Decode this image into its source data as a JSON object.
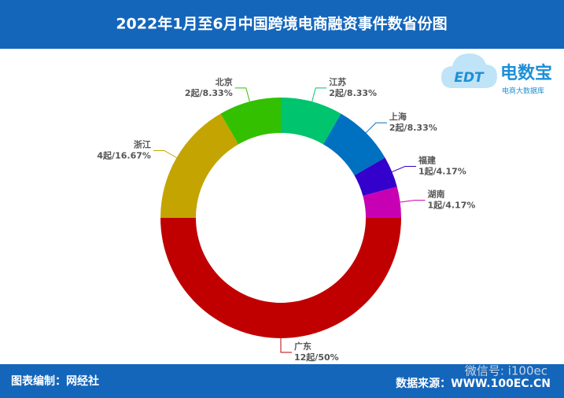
{
  "chart_data": {
    "type": "pie",
    "donut": true,
    "title": "2022年1月至6月中国跨境电商融资事件数省份图",
    "categories": [
      "江苏",
      "上海",
      "福建",
      "湖南",
      "广东",
      "浙江",
      "北京"
    ],
    "values": [
      2,
      2,
      1,
      1,
      12,
      4,
      2
    ],
    "value_labels": [
      "2起/8.33%",
      "2起/8.33%",
      "1起/4.17%",
      "1起/4.17%",
      "12起/50%",
      "4起/16.67%",
      "2起/8.33%"
    ],
    "colors": [
      "#00c46e",
      "#0070c0",
      "#3300cc",
      "#c800b4",
      "#c00000",
      "#c4a400",
      "#33c000"
    ]
  },
  "logo": {
    "mark": "EDT",
    "brand": "电数宝",
    "tagline": "电商大数据库"
  },
  "footer": {
    "left": "图表编制：网经社",
    "right": "数据来源：WWW.100EC.CN"
  },
  "watermark": "微信号: i100ec"
}
